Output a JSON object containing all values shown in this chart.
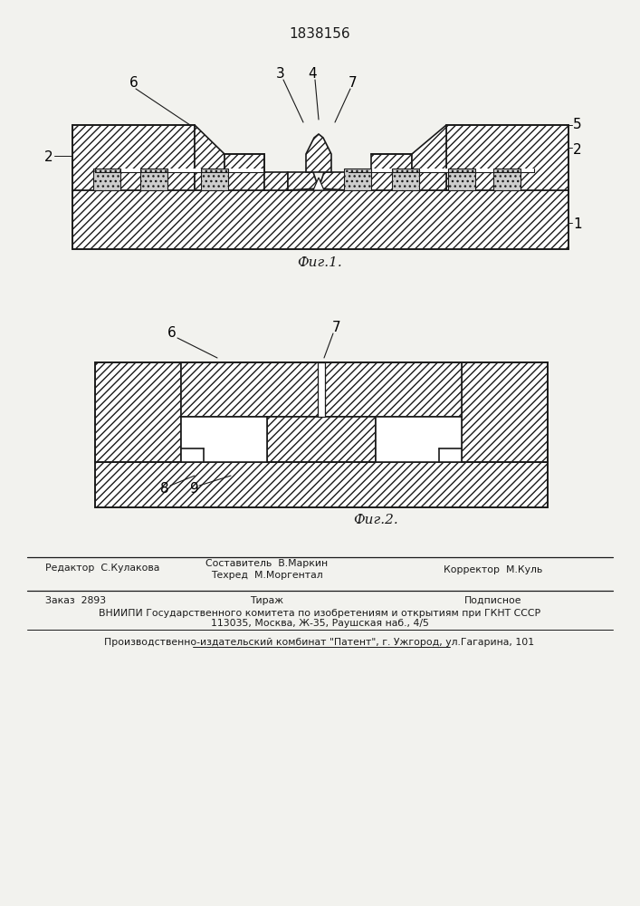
{
  "title": "1838156",
  "fig1_label": "Фиг.1.",
  "fig2_label": "Фиг.2.",
  "footer_editor": "Редактор  С.Кулакова",
  "footer_sostavitel": "Составитель  В.Маркин",
  "footer_tekhred": "Техред  М.Моргентал",
  "footer_korrektor": "Корректор  М.Куль",
  "footer_zakaz": "Заказ  2893",
  "footer_tirazh": "Тираж",
  "footer_podpisnoe": "Подписное",
  "footer_vniipи": "ВНИИПИ Государственного комитета по изобретениям и открытиям при ГКНТ СССР",
  "footer_address": "113035, Москва, Ж-35, Раушская наб., 4/5",
  "footer_patent": "Производственно-издательский комбинат \"Патент\", г. Ужгород, ул.Гагарина, 101",
  "bg_color": "#f2f2ee",
  "lc": "#1a1a1a",
  "hatch_color": "#444444"
}
